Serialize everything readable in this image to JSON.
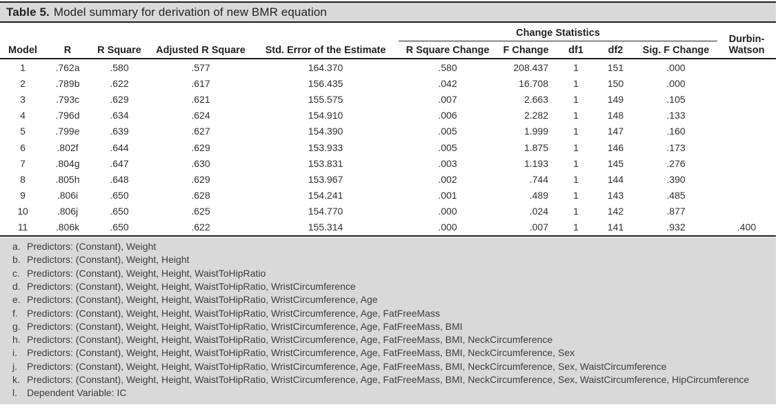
{
  "title": {
    "label": "Table 5.",
    "text": "Model summary for derivation of new BMR equation"
  },
  "table": {
    "spanner_label": "Change Statistics",
    "durbin_line1": "Durbin-",
    "durbin_line2": "Watson",
    "columns": [
      "Model",
      "R",
      "R Square",
      "Adjusted R Square",
      "Std. Error of the Estimate",
      "R Square Change",
      "F Change",
      "df1",
      "df2",
      "Sig. F Change"
    ],
    "rows": [
      [
        "1",
        ".762a",
        ".580",
        ".577",
        "164.370",
        ".580",
        "208.437",
        "1",
        "151",
        ".000",
        ""
      ],
      [
        "2",
        ".789b",
        ".622",
        ".617",
        "156.435",
        ".042",
        "16.708",
        "1",
        "150",
        ".000",
        ""
      ],
      [
        "3",
        ".793c",
        ".629",
        ".621",
        "155.575",
        ".007",
        "2.663",
        "1",
        "149",
        ".105",
        ""
      ],
      [
        "4",
        ".796d",
        ".634",
        ".624",
        "154.910",
        ".006",
        "2.282",
        "1",
        "148",
        ".133",
        ""
      ],
      [
        "5",
        ".799e",
        ".639",
        ".627",
        "154.390",
        ".005",
        "1.999",
        "1",
        "147",
        ".160",
        ""
      ],
      [
        "6",
        ".802f",
        ".644",
        ".629",
        "153.933",
        ".005",
        "1.875",
        "1",
        "146",
        ".173",
        ""
      ],
      [
        "7",
        ".804g",
        ".647",
        ".630",
        "153.831",
        ".003",
        "1.193",
        "1",
        "145",
        ".276",
        ""
      ],
      [
        "8",
        ".805h",
        ".648",
        ".629",
        "153.967",
        ".002",
        ".744",
        "1",
        "144",
        ".390",
        ""
      ],
      [
        "9",
        ".806i",
        ".650",
        ".628",
        "154.241",
        ".001",
        ".489",
        "1",
        "143",
        ".485",
        ""
      ],
      [
        "10",
        ".806j",
        ".650",
        ".625",
        "154.770",
        ".000",
        ".024",
        "1",
        "142",
        ".877",
        ""
      ],
      [
        "11",
        ".806k",
        ".650",
        ".622",
        "155.314",
        ".000",
        ".007",
        "1",
        "141",
        ".932",
        ".400"
      ]
    ]
  },
  "footnotes": [
    {
      "label": "a.",
      "text": "Predictors: (Constant), Weight"
    },
    {
      "label": "b.",
      "text": "Predictors: (Constant), Weight, Height"
    },
    {
      "label": "c.",
      "text": "Predictors: (Constant), Weight, Height, WaistToHipRatio"
    },
    {
      "label": "d.",
      "text": "Predictors: (Constant), Weight, Height, WaistToHipRatio, WristCircumference"
    },
    {
      "label": "e.",
      "text": "Predictors: (Constant), Weight, Height, WaistToHipRatio, WristCircumference, Age"
    },
    {
      "label": "f.",
      "text": "Predictors: (Constant), Weight, Height, WaistToHipRatio, WristCircumference, Age, FatFreeMass"
    },
    {
      "label": "g.",
      "text": "Predictors: (Constant), Weight, Height, WaistToHipRatio, WristCircumference, Age, FatFreeMass, BMI"
    },
    {
      "label": "h.",
      "text": "Predictors: (Constant), Weight, Height, WaistToHipRatio, WristCircumference, Age, FatFreeMass, BMI, NeckCircumference"
    },
    {
      "label": "i.",
      "text": "Predictors: (Constant), Weight, Height, WaistToHipRatio, WristCircumference, Age, FatFreeMass, BMI, NeckCircumference, Sex"
    },
    {
      "label": "j.",
      "text": "Predictors: (Constant), Weight, Height, WaistToHipRatio, WristCircumference, Age, FatFreeMass, BMI, NeckCircumference, Sex, WaistCircumference"
    },
    {
      "label": "k.",
      "text": "Predictors: (Constant), Weight, Height, WaistToHipRatio, WristCircumference, Age, FatFreeMass, BMI, NeckCircumference, Sex, WaistCircumference, HipCircumference"
    },
    {
      "label": "l.",
      "text": "Dependent Variable: IC"
    }
  ],
  "colors": {
    "band_gray": "#d9d9d9",
    "rule_black": "#1c1c1c",
    "text": "#232323"
  }
}
